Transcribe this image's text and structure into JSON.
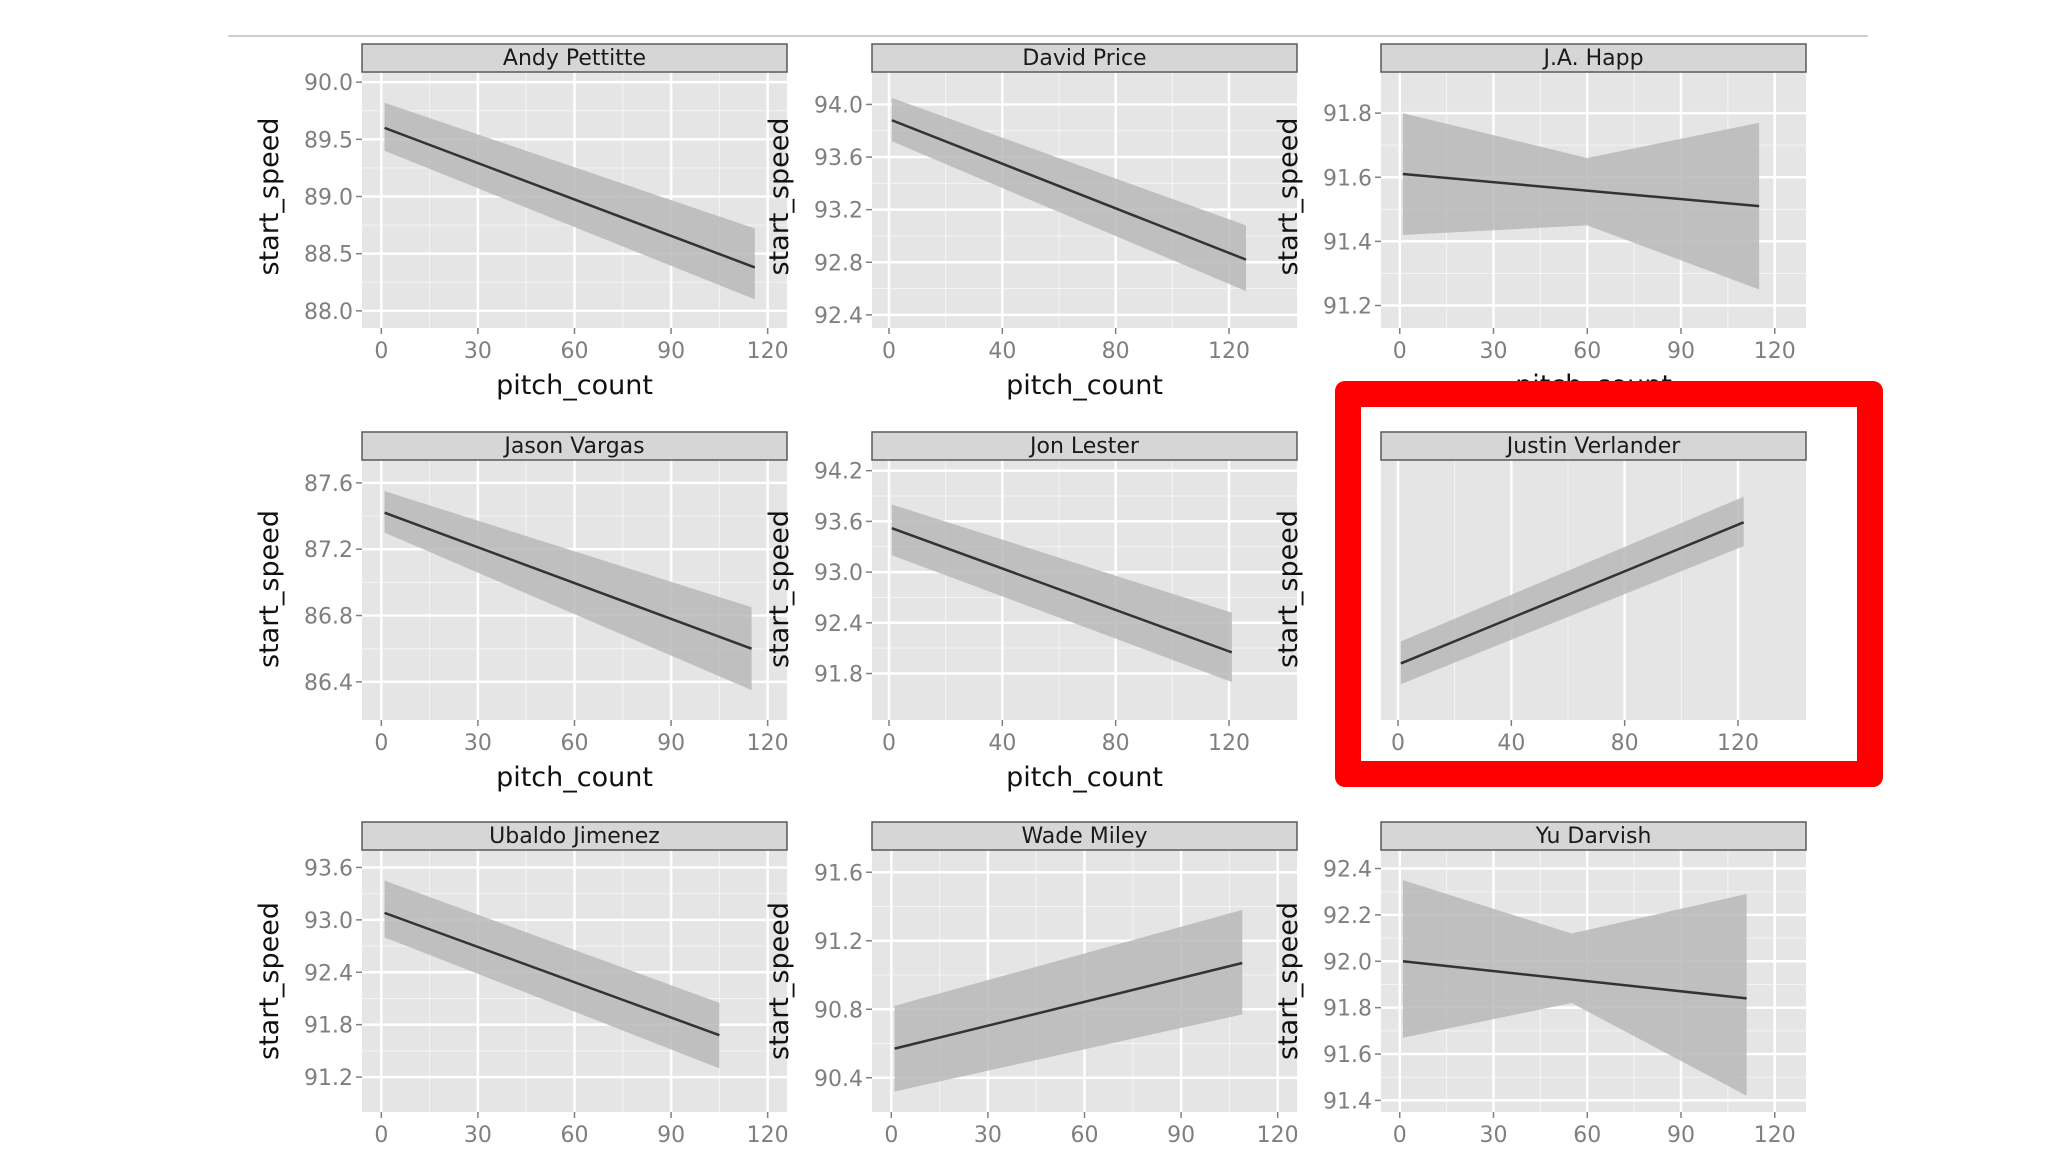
{
  "colors": {
    "panel_bg": "#e5e5e5",
    "grid": "#ffffff",
    "ribbon": "#b8b8b8",
    "line": "#333333",
    "strip_bg": "#d6d6d6",
    "strip_border": "#5a5a5a",
    "highlight": "#ff0000"
  },
  "chart_data": [
    {
      "type": "line",
      "facet": "Andy Pettitte",
      "xlabel": "pitch_count",
      "ylabel": "start_speed",
      "xlim": [
        -6,
        126
      ],
      "ylim": [
        87.85,
        90.15
      ],
      "xticks": [
        "0",
        "30",
        "60",
        "90",
        "120"
      ],
      "yticks": [
        "88.0",
        "88.5",
        "89.0",
        "89.5",
        "90.0"
      ],
      "x": [
        1,
        116
      ],
      "y": [
        89.6,
        88.38
      ],
      "band_x": [
        1,
        116
      ],
      "band_lower": [
        89.4,
        88.1
      ],
      "band_upper": [
        89.82,
        88.72
      ]
    },
    {
      "type": "line",
      "facet": "David Price",
      "xlabel": "pitch_count",
      "ylabel": "start_speed",
      "xlim": [
        -6,
        144
      ],
      "ylim": [
        92.3,
        94.3
      ],
      "xticks": [
        "0",
        "40",
        "80",
        "120"
      ],
      "yticks": [
        "92.4",
        "92.8",
        "93.2",
        "93.6",
        "94.0"
      ],
      "x": [
        1,
        126
      ],
      "y": [
        93.88,
        92.82
      ],
      "band_x": [
        1,
        126
      ],
      "band_lower": [
        93.72,
        92.58
      ],
      "band_upper": [
        94.05,
        93.08
      ]
    },
    {
      "type": "line",
      "facet": "J.A. Happ",
      "xlabel": "pitch_count",
      "ylabel": "start_speed",
      "xlim": [
        -6,
        130
      ],
      "ylim": [
        91.13,
        91.95
      ],
      "xticks": [
        "0",
        "30",
        "60",
        "90",
        "120"
      ],
      "yticks": [
        "91.2",
        "91.4",
        "91.6",
        "91.8"
      ],
      "x": [
        1,
        115
      ],
      "y": [
        91.61,
        91.51
      ],
      "band_x": [
        1,
        60,
        115
      ],
      "band_lower": [
        91.42,
        91.45,
        91.25
      ],
      "band_upper": [
        91.8,
        91.66,
        91.77
      ]
    },
    {
      "type": "line",
      "facet": "Jason Vargas",
      "xlabel": "pitch_count",
      "ylabel": "start_speed",
      "xlim": [
        -6,
        126
      ],
      "ylim": [
        86.17,
        87.75
      ],
      "xticks": [
        "0",
        "30",
        "60",
        "90",
        "120"
      ],
      "yticks": [
        "86.4",
        "86.8",
        "87.2",
        "87.6"
      ],
      "x": [
        1,
        115
      ],
      "y": [
        87.42,
        86.6
      ],
      "band_x": [
        1,
        115
      ],
      "band_lower": [
        87.3,
        86.35
      ],
      "band_upper": [
        87.55,
        86.85
      ]
    },
    {
      "type": "line",
      "facet": "Jon Lester",
      "xlabel": "pitch_count",
      "ylabel": "start_speed",
      "xlim": [
        -6,
        144
      ],
      "ylim": [
        91.25,
        94.35
      ],
      "xticks": [
        "0",
        "40",
        "80",
        "120"
      ],
      "yticks": [
        "91.8",
        "92.4",
        "93.0",
        "93.6",
        "94.2"
      ],
      "x": [
        1,
        121
      ],
      "y": [
        93.52,
        92.05
      ],
      "band_x": [
        1,
        121
      ],
      "band_lower": [
        93.2,
        91.7
      ],
      "band_upper": [
        93.8,
        92.52
      ]
    },
    {
      "type": "line",
      "facet": "Justin Verlander",
      "xlabel": "",
      "ylabel": "start_speed",
      "xlim": [
        -6,
        144
      ],
      "ylim": [
        91.5,
        95.9
      ],
      "xticks": [
        "0",
        "40",
        "80",
        "120"
      ],
      "yticks": [],
      "x": [
        1,
        122
      ],
      "y": [
        92.45,
        94.82
      ],
      "band_x": [
        1,
        122
      ],
      "band_lower": [
        92.1,
        94.42
      ],
      "band_upper": [
        92.82,
        95.25
      ]
    },
    {
      "type": "line",
      "facet": "Ubaldo Jimenez",
      "xlabel": "",
      "ylabel": "start_speed",
      "xlim": [
        -6,
        126
      ],
      "ylim": [
        90.8,
        93.8
      ],
      "xticks": [
        "0",
        "30",
        "60",
        "90",
        "120"
      ],
      "yticks": [
        "91.2",
        "91.8",
        "92.4",
        "93.0",
        "93.6"
      ],
      "x": [
        1,
        105
      ],
      "y": [
        93.08,
        91.68
      ],
      "band_x": [
        1,
        105
      ],
      "band_lower": [
        92.8,
        91.3
      ],
      "band_upper": [
        93.45,
        92.05
      ]
    },
    {
      "type": "line",
      "facet": "Wade Miley",
      "xlabel": "",
      "ylabel": "start_speed",
      "xlim": [
        -6,
        126
      ],
      "ylim": [
        90.2,
        91.73
      ],
      "xticks": [
        "0",
        "30",
        "60",
        "90",
        "120"
      ],
      "yticks": [
        "90.4",
        "90.8",
        "91.2",
        "91.6"
      ],
      "x": [
        1,
        109
      ],
      "y": [
        90.57,
        91.07
      ],
      "band_x": [
        1,
        109
      ],
      "band_lower": [
        90.32,
        90.77
      ],
      "band_upper": [
        90.82,
        91.38
      ]
    },
    {
      "type": "line",
      "facet": "Yu Darvish",
      "xlabel": "",
      "ylabel": "start_speed",
      "xlim": [
        -6,
        130
      ],
      "ylim": [
        91.35,
        92.48
      ],
      "xticks": [
        "0",
        "30",
        "60",
        "90",
        "120"
      ],
      "yticks": [
        "91.4",
        "91.6",
        "91.8",
        "92.0",
        "92.2",
        "92.4"
      ],
      "x": [
        1,
        111
      ],
      "y": [
        92.0,
        91.84
      ],
      "band_x": [
        1,
        55,
        111
      ],
      "band_lower": [
        91.67,
        91.82,
        91.42
      ],
      "band_upper": [
        92.35,
        92.12,
        92.29
      ]
    }
  ]
}
